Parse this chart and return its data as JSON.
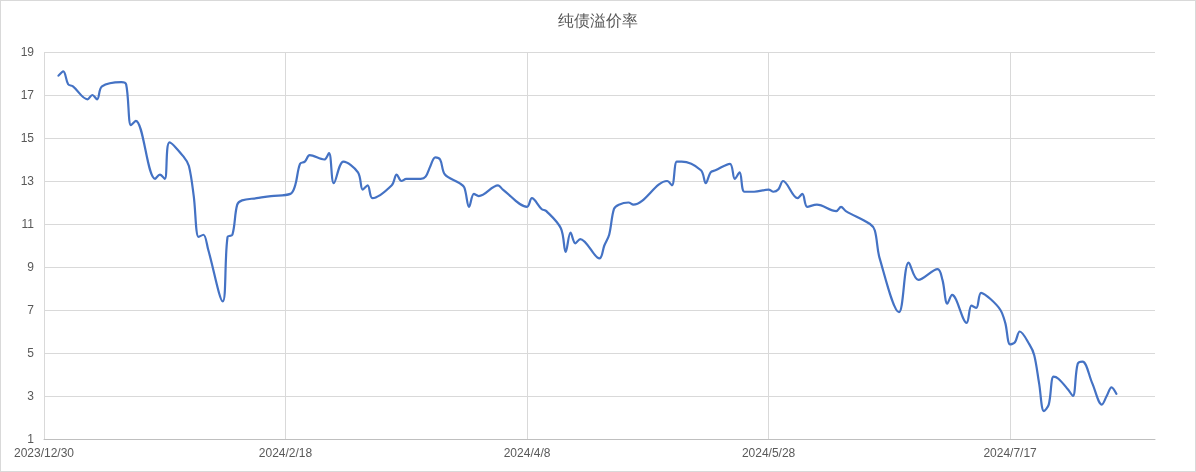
{
  "chart_data": {
    "type": "line",
    "title": "纯债溢价率",
    "x": [
      "2024-01-02",
      "2024-01-03",
      "2024-01-04",
      "2024-01-05",
      "2024-01-08",
      "2024-01-09",
      "2024-01-10",
      "2024-01-11",
      "2024-01-15",
      "2024-01-16",
      "2024-01-17",
      "2024-01-18",
      "2024-01-22",
      "2024-01-23",
      "2024-01-24",
      "2024-01-25",
      "2024-01-28",
      "2024-01-29",
      "2024-01-30",
      "2024-01-31",
      "2024-02-01",
      "2024-02-02",
      "2024-02-05",
      "2024-02-06",
      "2024-02-07",
      "2024-02-08",
      "2024-02-09",
      "2024-02-12",
      "2024-02-15",
      "2024-02-19",
      "2024-02-20",
      "2024-02-21",
      "2024-02-22",
      "2024-02-23",
      "2024-02-26",
      "2024-02-27",
      "2024-02-28",
      "2024-03-01",
      "2024-03-04",
      "2024-03-05",
      "2024-03-06",
      "2024-03-07",
      "2024-03-11",
      "2024-03-12",
      "2024-03-13",
      "2024-03-14",
      "2024-03-17",
      "2024-03-18",
      "2024-03-19",
      "2024-03-20",
      "2024-03-21",
      "2024-03-22",
      "2024-03-25",
      "2024-03-26",
      "2024-03-27",
      "2024-03-28",
      "2024-03-29",
      "2024-04-02",
      "2024-04-03",
      "2024-04-08",
      "2024-04-09",
      "2024-04-11",
      "2024-04-12",
      "2024-04-15",
      "2024-04-16",
      "2024-04-17",
      "2024-04-18",
      "2024-04-19",
      "2024-04-23",
      "2024-04-24",
      "2024-04-25",
      "2024-04-26",
      "2024-04-27",
      "2024-04-29",
      "2024-04-30",
      "2024-05-07",
      "2024-05-08",
      "2024-05-09",
      "2024-05-10",
      "2024-05-14",
      "2024-05-15",
      "2024-05-16",
      "2024-05-17",
      "2024-05-20",
      "2024-05-21",
      "2024-05-22",
      "2024-05-23",
      "2024-05-25",
      "2024-05-28",
      "2024-05-29",
      "2024-05-30",
      "2024-05-31",
      "2024-06-03",
      "2024-06-04",
      "2024-06-05",
      "2024-06-07",
      "2024-06-11",
      "2024-06-12",
      "2024-06-13",
      "2024-06-18",
      "2024-06-19",
      "2024-06-20",
      "2024-06-24",
      "2024-06-26",
      "2024-06-28",
      "2024-07-02",
      "2024-07-03",
      "2024-07-04",
      "2024-07-05",
      "2024-07-08",
      "2024-07-09",
      "2024-07-10",
      "2024-07-11",
      "2024-07-13",
      "2024-07-15",
      "2024-07-16",
      "2024-07-17",
      "2024-07-18",
      "2024-07-19",
      "2024-07-21",
      "2024-07-22",
      "2024-07-23",
      "2024-07-24",
      "2024-07-25",
      "2024-07-26",
      "2024-07-27",
      "2024-07-29",
      "2024-07-30",
      "2024-07-31",
      "2024-08-01",
      "2024-08-03",
      "2024-08-05",
      "2024-08-06",
      "2024-08-07",
      "2024-08-08"
    ],
    "series": [
      {
        "color": "#4472c4",
        "values": [
          17.9,
          18.1,
          17.5,
          17.4,
          16.8,
          17.0,
          16.8,
          17.4,
          17.6,
          17.5,
          15.6,
          15.8,
          13.1,
          13.3,
          13.1,
          14.8,
          14.1,
          13.7,
          12.3,
          10.4,
          10.5,
          9.8,
          7.4,
          10.4,
          10.5,
          11.9,
          12.1,
          12.2,
          12.3,
          12.4,
          12.8,
          13.8,
          13.9,
          14.2,
          14.0,
          14.3,
          12.9,
          13.9,
          13.4,
          12.6,
          12.8,
          12.2,
          12.8,
          13.3,
          13.0,
          13.1,
          13.1,
          13.2,
          13.7,
          14.1,
          14.0,
          13.3,
          12.9,
          12.7,
          11.8,
          12.4,
          12.3,
          12.8,
          12.6,
          11.8,
          12.2,
          11.7,
          11.6,
          10.8,
          9.7,
          10.6,
          10.1,
          10.3,
          9.4,
          10.0,
          10.5,
          11.7,
          11.9,
          12.0,
          11.9,
          13.0,
          12.8,
          13.9,
          13.9,
          13.5,
          12.9,
          13.4,
          13.5,
          13.8,
          13.1,
          13.4,
          12.5,
          12.5,
          12.6,
          12.5,
          12.6,
          13.0,
          12.2,
          12.4,
          11.8,
          11.9,
          11.6,
          11.8,
          11.6,
          11.0,
          10.7,
          9.4,
          6.9,
          9.2,
          8.4,
          8.9,
          8.4,
          7.3,
          7.7,
          6.4,
          7.2,
          7.1,
          7.8,
          7.5,
          7.0,
          6.4,
          5.4,
          5.5,
          6.0,
          5.4,
          4.9,
          3.6,
          2.3,
          2.6,
          3.9,
          3.8,
          3.3,
          3.0,
          4.5,
          4.6,
          3.6,
          2.6,
          3.0,
          3.4,
          3.1
        ]
      }
    ],
    "xlim": [
      "2023-12-30",
      "2024-08-16"
    ],
    "xticks": [
      {
        "value": "2023-12-30",
        "label": "2023/12/30"
      },
      {
        "value": "2024-02-18",
        "label": "2024/2/18"
      },
      {
        "value": "2024-04-08",
        "label": "2024/4/8"
      },
      {
        "value": "2024-05-28",
        "label": "2024/5/28"
      },
      {
        "value": "2024-07-17",
        "label": "2024/7/17"
      }
    ],
    "ylim": [
      1,
      19
    ],
    "yticks": [
      1,
      3,
      5,
      7,
      9,
      11,
      13,
      15,
      17,
      19
    ],
    "grid": true,
    "marker": "none",
    "line_style": "solid"
  }
}
